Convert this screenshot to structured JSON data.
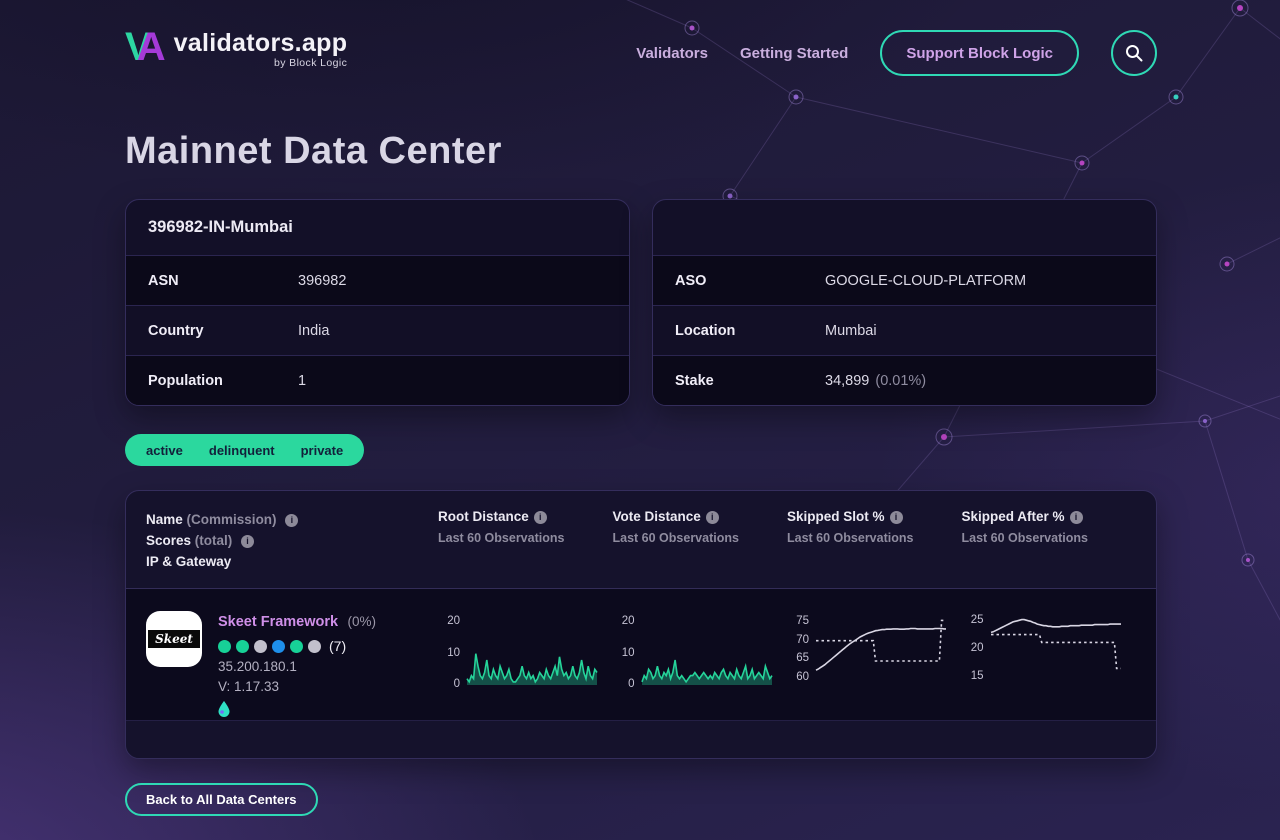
{
  "brand": {
    "mark_v": "V",
    "mark_a": "A",
    "name": "validators.app",
    "byline": "by Block Logic"
  },
  "nav": {
    "links": [
      {
        "label": "Validators"
      },
      {
        "label": "Getting Started"
      }
    ],
    "support_label": "Support Block Logic"
  },
  "page": {
    "title": "Mainnet Data Center"
  },
  "cards": {
    "left": {
      "title": "396982-IN-Mumbai",
      "rows": [
        {
          "label": "ASN",
          "value": "396982"
        },
        {
          "label": "Country",
          "value": "India"
        },
        {
          "label": "Population",
          "value": "1"
        }
      ]
    },
    "right": {
      "rows": [
        {
          "label": "ASO",
          "value": "GOOGLE-CLOUD-PLATFORM"
        },
        {
          "label": "Location",
          "value": "Mumbai"
        },
        {
          "label": "Stake",
          "value": "34,899",
          "suffix": "(0.01%)"
        }
      ]
    }
  },
  "filters": {
    "options": [
      {
        "label": "active"
      },
      {
        "label": "delinquent"
      },
      {
        "label": "private"
      }
    ]
  },
  "table": {
    "header": {
      "line1_bold": "Name",
      "line1_dim": "(Commission)",
      "line2_bold": "Scores",
      "line2_dim": "(total)",
      "line3_bold": "IP & Gateway",
      "columns": [
        {
          "title": "Root Distance",
          "subtitle": "Last 60 Observations"
        },
        {
          "title": "Vote Distance",
          "subtitle": "Last 60 Observations"
        },
        {
          "title": "Skipped Slot %",
          "subtitle": "Last 60 Observations"
        },
        {
          "title": "Skipped After %",
          "subtitle": "Last 60 Observations"
        }
      ]
    },
    "row": {
      "avatar_text": "Skeet",
      "name": "Skeet Framework",
      "commission": "(0%)",
      "dots": [
        {
          "class": "dot green"
        },
        {
          "class": "dot green"
        },
        {
          "class": "dot gray"
        },
        {
          "class": "dot blue"
        },
        {
          "class": "dot green"
        },
        {
          "class": "dot gray"
        }
      ],
      "score_total": "(7)",
      "ip": "35.200.180.1",
      "version": "V: 1.17.33"
    }
  },
  "back_button": {
    "label": "Back to All Data Centers"
  },
  "colors": {
    "accent_teal": "#2fd9b5",
    "filter_green": "#2bd89e",
    "logo_teal": "#2dd6a2",
    "logo_purple": "#a43ad8",
    "name_purple": "#cf8fe8",
    "dot_green": "#17d197",
    "dot_blue": "#1e8fea",
    "dot_gray": "#c2c0cc",
    "spark_green": "#25d49a",
    "spark_white": "#d9d6e4"
  },
  "chart_data": [
    {
      "type": "area",
      "title": "Root Distance",
      "subtitle": "Last 60 Observations",
      "ylim": [
        0,
        23
      ],
      "ticks": [
        20,
        10,
        0
      ],
      "series": [
        {
          "name": "root distance",
          "color": "#25d49a",
          "fill": "rgba(37,212,154,0.35)",
          "area": true,
          "values": [
            2,
            1,
            3,
            2,
            10,
            6,
            3,
            2,
            4,
            8,
            3,
            2,
            5,
            3,
            2,
            6,
            4,
            2,
            3,
            5,
            2,
            1,
            1,
            2,
            3,
            6,
            3,
            2,
            4,
            2,
            3,
            1,
            2,
            4,
            3,
            2,
            5,
            3,
            2,
            4,
            6,
            3,
            9,
            5,
            3,
            4,
            2,
            3,
            6,
            3,
            2,
            4,
            8,
            4,
            2,
            6,
            3,
            2,
            5,
            4
          ]
        }
      ]
    },
    {
      "type": "area",
      "title": "Vote Distance",
      "subtitle": "Last 60 Observations",
      "ylim": [
        0,
        23
      ],
      "ticks": [
        20,
        10,
        0
      ],
      "series": [
        {
          "name": "vote distance",
          "color": "#25d49a",
          "fill": "rgba(37,212,154,0.35)",
          "area": true,
          "values": [
            1,
            3,
            2,
            5,
            4,
            2,
            3,
            6,
            3,
            2,
            4,
            3,
            5,
            2,
            4,
            8,
            3,
            2,
            3,
            2,
            1,
            2,
            3,
            3,
            4,
            3,
            2,
            3,
            4,
            3,
            2,
            3,
            2,
            4,
            3,
            2,
            4,
            5,
            3,
            2,
            4,
            3,
            2,
            5,
            3,
            2,
            4,
            6,
            2,
            3,
            5,
            2,
            3,
            4,
            3,
            2,
            6,
            4,
            2,
            3
          ]
        }
      ]
    },
    {
      "type": "line",
      "title": "Skipped Slot %",
      "subtitle": "Last 60 Observations",
      "ylim": [
        58,
        77.5
      ],
      "ticks": [
        75,
        70,
        65,
        60
      ],
      "series": [
        {
          "name": "data center",
          "color": "#d9d6e4",
          "values": [
            62,
            62.3,
            62.7,
            63.1,
            63.5,
            64,
            64.5,
            65,
            65.5,
            66,
            66.5,
            67,
            67.5,
            68,
            68.5,
            69,
            69.4,
            69.8,
            70.2,
            70.6,
            71,
            71.3,
            71.6,
            71.9,
            72.1,
            72.3,
            72.5,
            72.7,
            72.8,
            72.9,
            73,
            73,
            73.1,
            73.1,
            73.1,
            73.2,
            73.2,
            73.2,
            73.1,
            73.1,
            73.1,
            73.2,
            73.2,
            73.3,
            73.3,
            73.3,
            73.2,
            73.2,
            73.2,
            73.2,
            73.2,
            73.2,
            73.2,
            73.2,
            73.3,
            73.3,
            73.3,
            73.3,
            73.2,
            73.2
          ]
        },
        {
          "name": "cluster median",
          "color": "#d9d6e4",
          "dashed": true,
          "values": [
            70,
            70,
            70,
            70,
            70,
            70,
            70,
            70,
            70,
            70,
            70,
            70,
            70,
            70,
            70,
            70,
            70,
            70,
            70,
            70,
            70,
            70,
            70,
            70,
            70,
            70,
            70,
            64.5,
            64.5,
            64.5,
            64.5,
            64.5,
            64.5,
            64.5,
            64.5,
            64.5,
            64.5,
            64.5,
            64.5,
            64.5,
            64.5,
            64.5,
            64.5,
            64.5,
            64.5,
            64.5,
            64.5,
            64.5,
            64.5,
            64.5,
            64.5,
            64.5,
            64.5,
            64.5,
            64.5,
            64.5,
            64.5,
            75.5,
            75.5,
            75.5
          ]
        }
      ]
    },
    {
      "type": "line",
      "title": "Skipped After %",
      "subtitle": "Last 60 Observations",
      "ylim": [
        13.5,
        26.5
      ],
      "ticks": [
        25,
        20,
        15
      ],
      "series": [
        {
          "name": "data center",
          "color": "#d9d6e4",
          "values": [
            23,
            23.1,
            23.3,
            23.5,
            23.7,
            23.9,
            24.1,
            24.3,
            24.5,
            24.7,
            24.9,
            25,
            25.1,
            25.2,
            25.3,
            25.3,
            25.2,
            25.1,
            25,
            24.8,
            24.7,
            24.5,
            24.4,
            24.3,
            24.2,
            24.2,
            24.1,
            24.1,
            24,
            24,
            24,
            24,
            24.1,
            24.1,
            24.1,
            24.1,
            24.2,
            24.2,
            24.2,
            24.2,
            24.2,
            24.3,
            24.3,
            24.3,
            24.3,
            24.3,
            24.3,
            24.4,
            24.4,
            24.4,
            24.4,
            24.4,
            24.4,
            24.4,
            24.5,
            24.5,
            24.5,
            24.5,
            24.5,
            24.5
          ]
        },
        {
          "name": "cluster median",
          "color": "#d9d6e4",
          "dashed": true,
          "values": [
            22.6,
            22.6,
            22.6,
            22.6,
            22.6,
            22.6,
            22.6,
            22.6,
            22.6,
            22.6,
            22.6,
            22.6,
            22.6,
            22.6,
            22.6,
            22.6,
            22.6,
            22.6,
            22.6,
            22.6,
            22.6,
            22.6,
            22.6,
            21.2,
            21.2,
            21.2,
            21.2,
            21.2,
            21.2,
            21.2,
            21.2,
            21.2,
            21.2,
            21.2,
            21.2,
            21.2,
            21.2,
            21.2,
            21.2,
            21.2,
            21.2,
            21.2,
            21.2,
            21.2,
            21.2,
            21.2,
            21.2,
            21.2,
            21.2,
            21.2,
            21.2,
            21.2,
            21.2,
            21.2,
            21.2,
            21.2,
            21.2,
            16.5,
            16.5,
            16.5
          ]
        }
      ]
    }
  ]
}
